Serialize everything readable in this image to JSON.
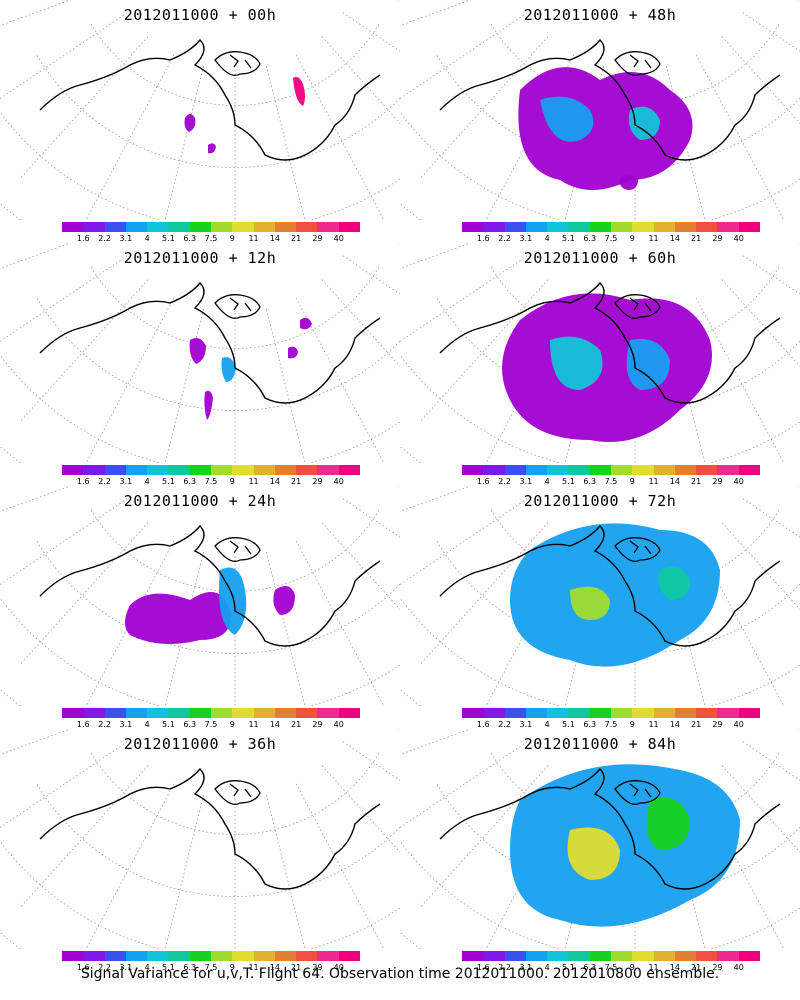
{
  "panels": [
    {
      "title": "2012011000  +  00h",
      "level": 0
    },
    {
      "title": "2012011000  +  48h",
      "level": 3
    },
    {
      "title": "2012011000  +  12h",
      "level": 1
    },
    {
      "title": "2012011000  +  60h",
      "level": 4
    },
    {
      "title": "2012011000  +  24h",
      "level": 2
    },
    {
      "title": "2012011000  +  72h",
      "level": 5
    },
    {
      "title": "2012011000  +  36h",
      "level": 2
    },
    {
      "title": "2012011000  +  84h",
      "level": 6
    }
  ],
  "colorbar": {
    "colors": [
      "#a000d0",
      "#8018e8",
      "#3c50f0",
      "#16a0f0",
      "#10c4d8",
      "#10c8a0",
      "#18d020",
      "#a0dc30",
      "#e0dc30",
      "#e0b030",
      "#e08030",
      "#f05040",
      "#f02890",
      "#f00080"
    ],
    "labels": [
      "1.6",
      "2.2",
      "3.1",
      "4",
      "5.1",
      "6.3",
      "7.5",
      "9",
      "11",
      "14",
      "21",
      "29",
      "40"
    ]
  },
  "footer": "Signal Variance for u,v,T. Flight 64. Observation time 2012011000. 2012010800 ensemble."
}
